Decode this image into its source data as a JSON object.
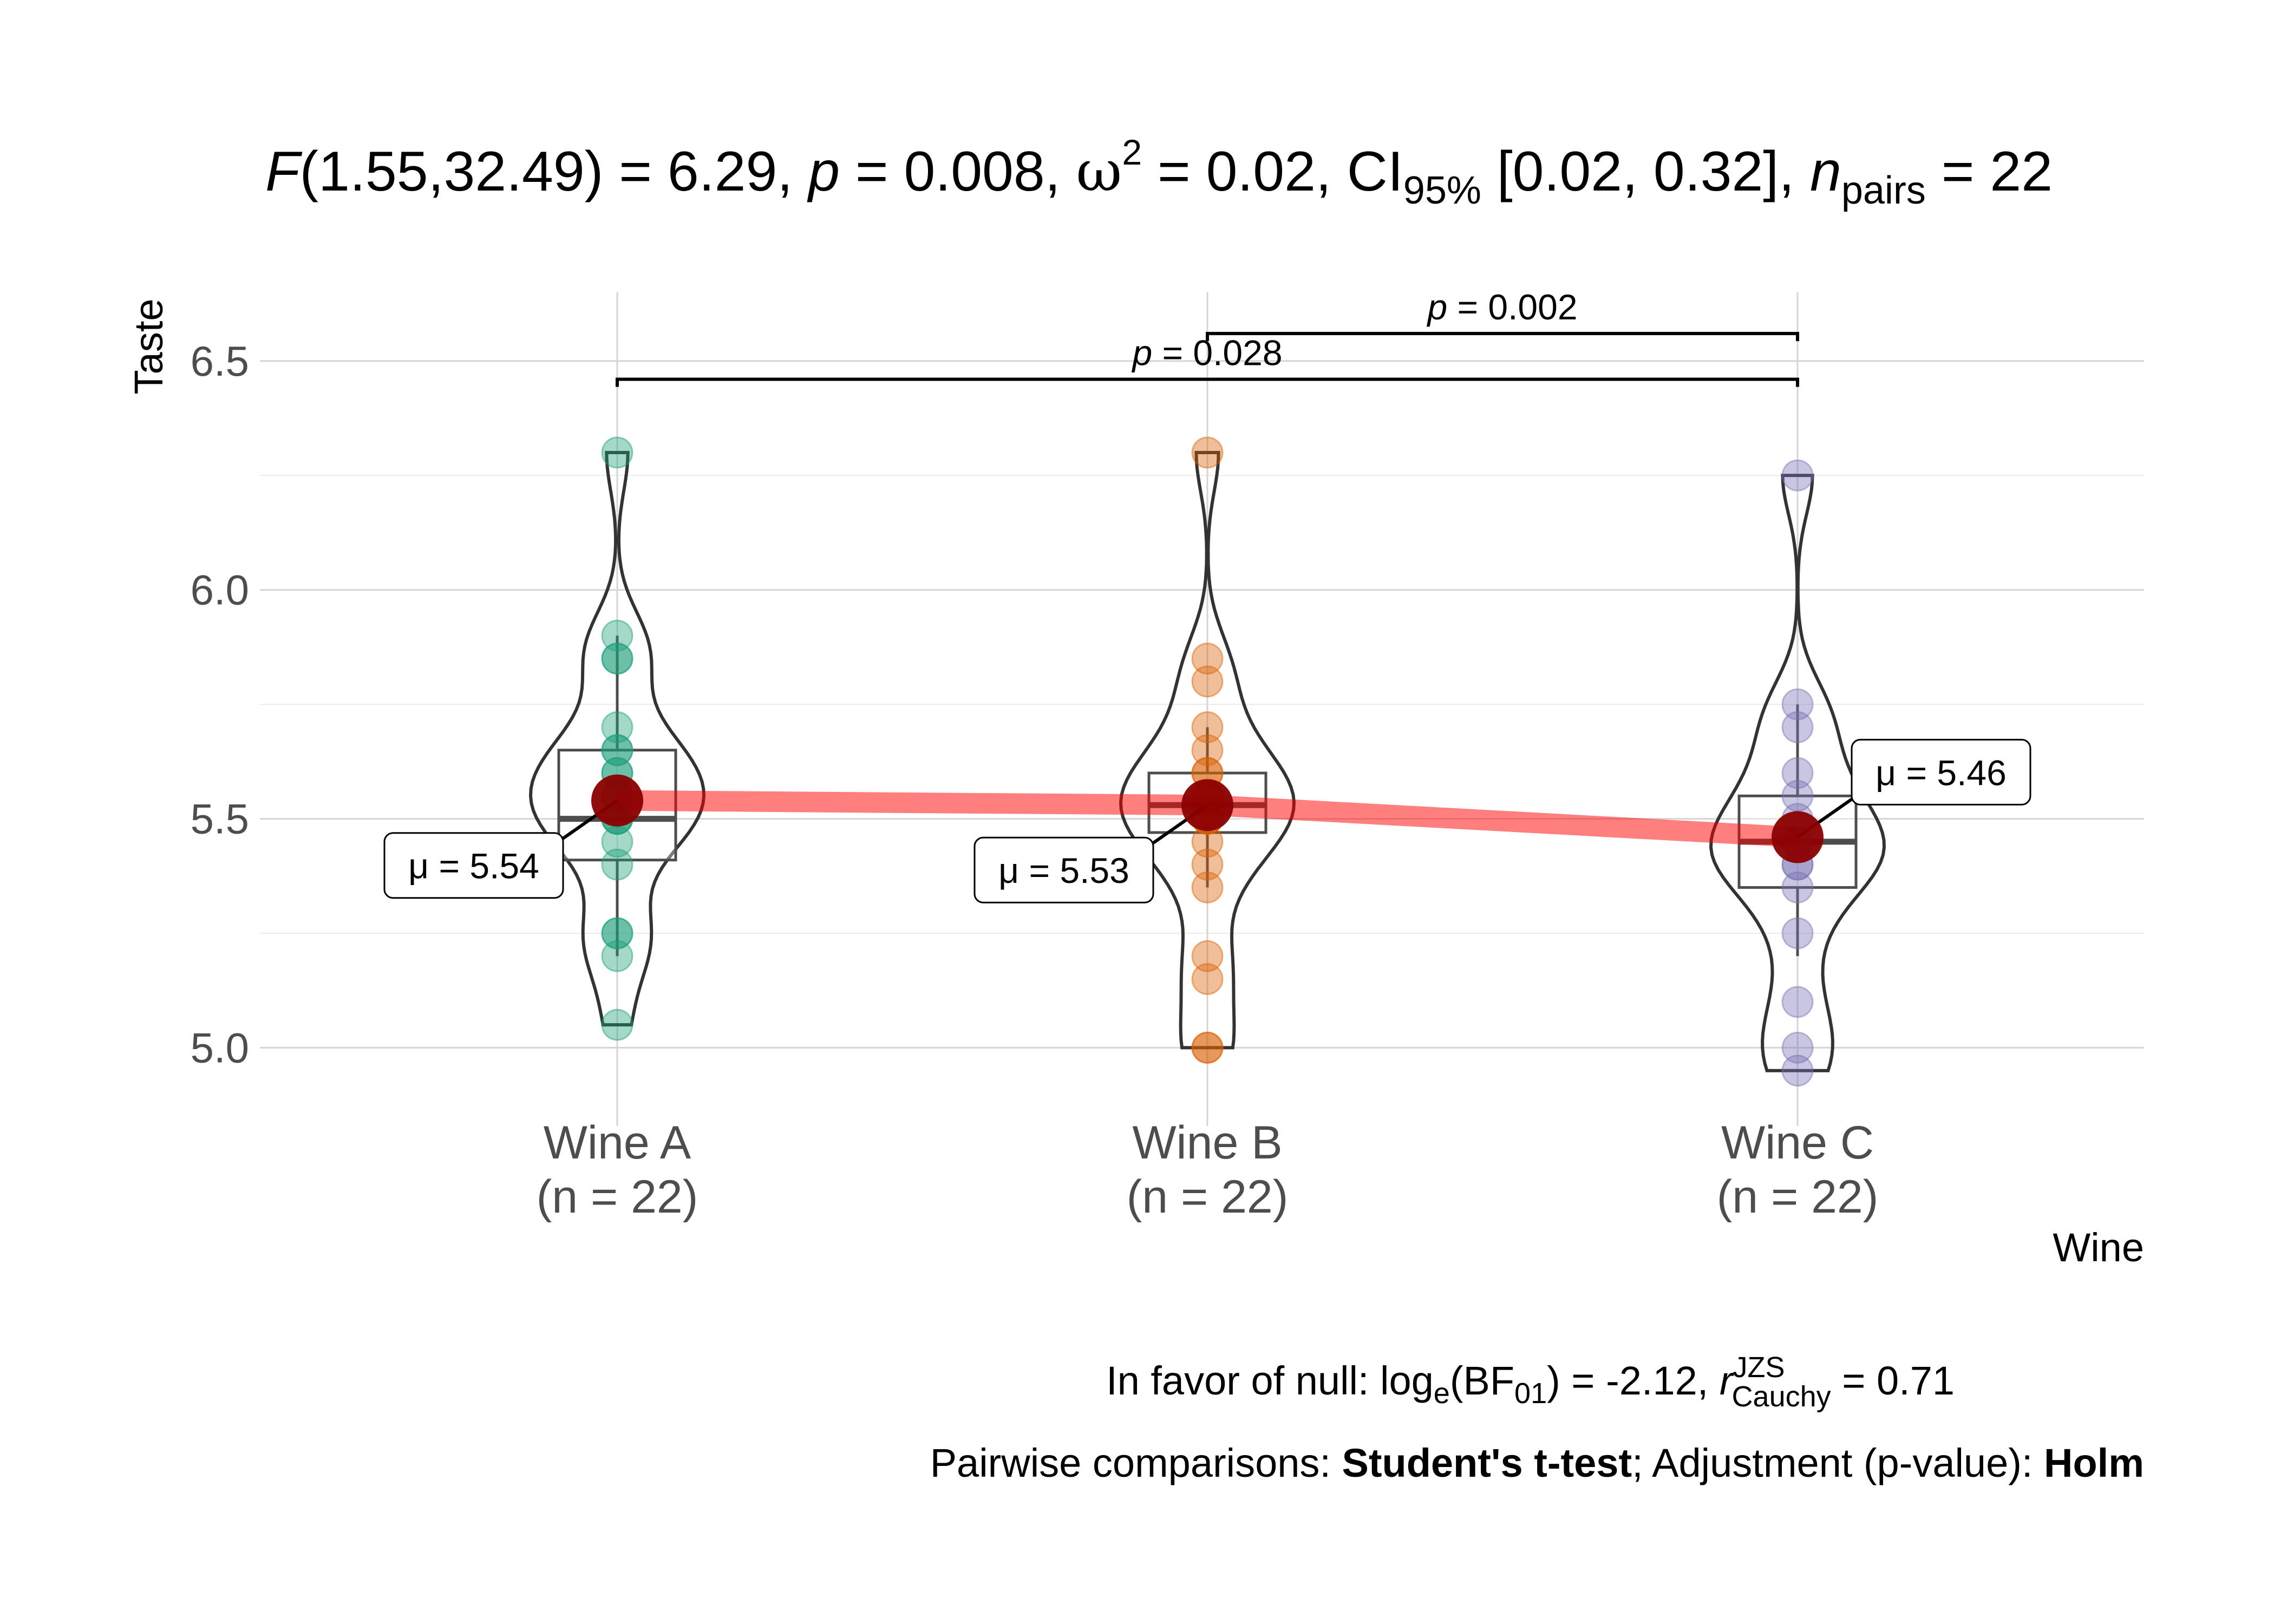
{
  "chart_data": {
    "type": "violin",
    "title": {
      "F_sym": "F",
      "F_val": "(1.55,32.49) = 6.29, ",
      "p_sym": "p",
      "p_val": " = 0.008, ",
      "omega_sym": "ω",
      "omega_sup": "2",
      "omega_val": " = 0.02, CI",
      "ci_sub": "95%",
      "ci_val": " [0.02, 0.32], ",
      "n_sym": "n",
      "n_sub": "pairs",
      "n_val": " = 22"
    },
    "xlabel": "Wine",
    "ylabel": "Taste",
    "ylim": [
      4.9,
      6.65
    ],
    "yticks": [
      "5.0",
      "5.5",
      "6.0",
      "6.5"
    ],
    "ytick_values": [
      5.0,
      5.5,
      6.0,
      6.5
    ],
    "grid": true,
    "categories": [
      {
        "name": "Wine A",
        "n_label": "(n = 22)",
        "color": "#1B9E77",
        "mean": 5.54,
        "mean_label": "μ = 5.54",
        "box": {
          "min": 5.2,
          "q1": 5.41,
          "median": 5.5,
          "q3": 5.65,
          "max": 5.9
        },
        "points": [
          5.05,
          5.2,
          5.25,
          5.25,
          5.4,
          5.45,
          5.5,
          5.5,
          5.5,
          5.55,
          5.55,
          5.6,
          5.6,
          5.65,
          5.65,
          5.7,
          5.85,
          5.85,
          5.9,
          6.3
        ]
      },
      {
        "name": "Wine B",
        "n_label": "(n = 22)",
        "color": "#D95F02",
        "mean": 5.53,
        "mean_label": "μ = 5.53",
        "box": {
          "min": 5.35,
          "q1": 5.47,
          "median": 5.53,
          "q3": 5.6,
          "max": 5.7
        },
        "points": [
          5.0,
          5.0,
          5.15,
          5.2,
          5.35,
          5.4,
          5.45,
          5.5,
          5.5,
          5.5,
          5.55,
          5.55,
          5.6,
          5.6,
          5.65,
          5.7,
          5.8,
          5.85,
          6.3
        ]
      },
      {
        "name": "Wine C",
        "n_label": "(n = 22)",
        "color": "#7570B3",
        "mean": 5.46,
        "mean_label": "μ = 5.46",
        "box": {
          "min": 5.2,
          "q1": 5.35,
          "median": 5.45,
          "q3": 5.55,
          "max": 5.75
        },
        "points": [
          4.95,
          5.0,
          5.1,
          5.25,
          5.35,
          5.4,
          5.4,
          5.45,
          5.45,
          5.5,
          5.55,
          5.6,
          5.7,
          5.75,
          6.25
        ]
      }
    ],
    "comparisons": [
      {
        "from": "Wine A",
        "to": "Wine C",
        "p_sym": "p",
        "p_val": " = 0.028",
        "y": 6.46
      },
      {
        "from": "Wine B",
        "to": "Wine C",
        "p_sym": "p",
        "p_val": " = 0.002",
        "y": 6.56
      }
    ],
    "mean_line_color": "#ff0000",
    "mean_point_color": "#8B0000",
    "caption1": {
      "prefix": "In favor of null: log",
      "log_sub": "e",
      "bf": "(BF",
      "bf_sub": "01",
      "bf_val": ") = -2.12, ",
      "r_sym": "r",
      "r_sup": "JZS",
      "r_sub": "Cauchy",
      "r_val": " = 0.71"
    },
    "caption2": {
      "prefix": "Pairwise comparisons: ",
      "test": "Student's t-test",
      "mid": "; Adjustment (p-value): ",
      "adj": "Holm"
    }
  }
}
